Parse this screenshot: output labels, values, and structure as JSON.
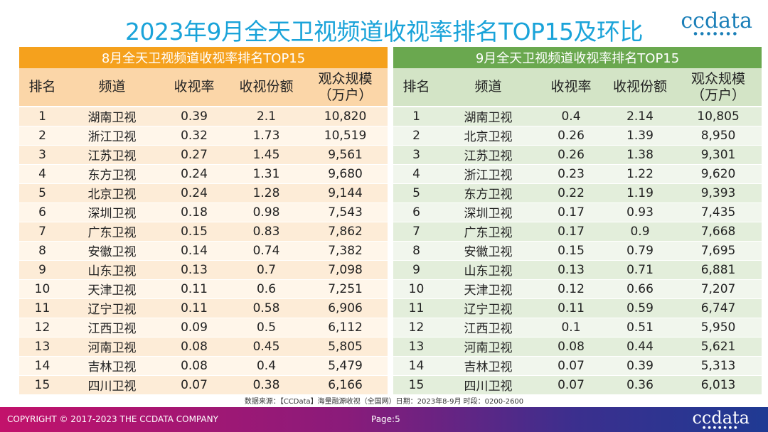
{
  "title": "2023年9月全天卫视频道收视率排名TOP15及环比",
  "logo": {
    "text": "ccdata",
    "dots": "●●●●●●●"
  },
  "left_table": {
    "caption": "8月全天卫视频道收视率排名TOP15",
    "headers": [
      "排名",
      "频道",
      "收视率",
      "收视份额",
      "观众规模",
      "（万户）"
    ],
    "rows": [
      [
        "1",
        "湖南卫视",
        "0.39",
        "2.1",
        "10,820"
      ],
      [
        "2",
        "浙江卫视",
        "0.32",
        "1.73",
        "10,519"
      ],
      [
        "3",
        "江苏卫视",
        "0.27",
        "1.45",
        "9,561"
      ],
      [
        "4",
        "东方卫视",
        "0.24",
        "1.31",
        "9,680"
      ],
      [
        "5",
        "北京卫视",
        "0.24",
        "1.28",
        "9,144"
      ],
      [
        "6",
        "深圳卫视",
        "0.18",
        "0.98",
        "7,543"
      ],
      [
        "7",
        "广东卫视",
        "0.15",
        "0.83",
        "7,862"
      ],
      [
        "8",
        "安徽卫视",
        "0.14",
        "0.74",
        "7,382"
      ],
      [
        "9",
        "山东卫视",
        "0.13",
        "0.7",
        "7,098"
      ],
      [
        "10",
        "天津卫视",
        "0.11",
        "0.6",
        "7,251"
      ],
      [
        "11",
        "辽宁卫视",
        "0.11",
        "0.58",
        "6,906"
      ],
      [
        "12",
        "江西卫视",
        "0.09",
        "0.5",
        "6,112"
      ],
      [
        "13",
        "河南卫视",
        "0.08",
        "0.45",
        "5,805"
      ],
      [
        "14",
        "吉林卫视",
        "0.08",
        "0.4",
        "5,479"
      ],
      [
        "15",
        "四川卫视",
        "0.07",
        "0.38",
        "6,166"
      ]
    ]
  },
  "right_table": {
    "caption": "9月全天卫视频道收视率排名TOP15",
    "headers": [
      "排名",
      "频道",
      "收视率",
      "收视份额",
      "观众规模",
      "（万户）"
    ],
    "rows": [
      [
        "1",
        "湖南卫视",
        "0.4",
        "2.14",
        "10,805"
      ],
      [
        "2",
        "北京卫视",
        "0.26",
        "1.39",
        "8,950"
      ],
      [
        "3",
        "江苏卫视",
        "0.26",
        "1.38",
        "9,301"
      ],
      [
        "4",
        "浙江卫视",
        "0.23",
        "1.22",
        "9,620"
      ],
      [
        "5",
        "东方卫视",
        "0.22",
        "1.19",
        "9,393"
      ],
      [
        "6",
        "深圳卫视",
        "0.17",
        "0.93",
        "7,435"
      ],
      [
        "7",
        "广东卫视",
        "0.17",
        "0.9",
        "7,668"
      ],
      [
        "8",
        "安徽卫视",
        "0.15",
        "0.79",
        "7,695"
      ],
      [
        "9",
        "山东卫视",
        "0.13",
        "0.71",
        "6,881"
      ],
      [
        "10",
        "天津卫视",
        "0.12",
        "0.66",
        "7,207"
      ],
      [
        "11",
        "辽宁卫视",
        "0.11",
        "0.59",
        "6,747"
      ],
      [
        "12",
        "江西卫视",
        "0.1",
        "0.51",
        "5,950"
      ],
      [
        "13",
        "河南卫视",
        "0.08",
        "0.44",
        "5,621"
      ],
      [
        "14",
        "吉林卫视",
        "0.07",
        "0.39",
        "5,313"
      ],
      [
        "15",
        "四川卫视",
        "0.07",
        "0.36",
        "6,013"
      ]
    ]
  },
  "source": "数据来源：【CCData】海量融源收视（全国网）日期：2023年8-9月 时段：0200-2600",
  "footer": {
    "copyright": "COPYRIGHT © 2017-2023 THE CCDATA COMPANY",
    "page": "Page:5",
    "logo": "ccdata",
    "logo_dots": "●●●●●●●"
  },
  "colors": {
    "title": "#1aa3d9",
    "august_accent": "#f5a11d",
    "september_accent": "#6aa84f"
  }
}
